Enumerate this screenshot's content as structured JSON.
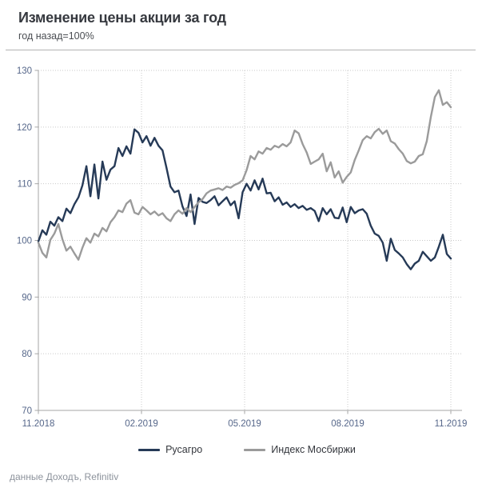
{
  "page": {
    "title": "Изменение цены акции за год",
    "subtitle": "год назад=100%",
    "footer": "данные Доходъ, Refinitiv"
  },
  "chart_data": {
    "type": "line",
    "title": "Изменение цены акции за год",
    "subtitle": "год назад=100%",
    "xlabel": "",
    "ylabel": "",
    "ylim": [
      70,
      130
    ],
    "yticks": [
      70,
      80,
      90,
      100,
      110,
      120,
      130
    ],
    "xtick_labels": [
      "11.2018",
      "02.2019",
      "05.2019",
      "08.2019",
      "11.2019"
    ],
    "grid": "dotted",
    "legend_position": "bottom",
    "axis_color": "#a6a6a6",
    "grid_color": "#c9c9c9",
    "tick_label_color": "#56678a",
    "series": [
      {
        "name": "Русагро",
        "color": "#263a57",
        "values": [
          99.8,
          101.8,
          101.0,
          103.3,
          102.6,
          104.1,
          103.4,
          105.6,
          104.8,
          106.4,
          107.6,
          109.7,
          113.1,
          107.8,
          113.4,
          107.4,
          113.9,
          110.7,
          112.5,
          113.1,
          116.3,
          114.9,
          116.6,
          115.3,
          119.6,
          119.0,
          117.3,
          118.4,
          116.7,
          118.1,
          116.7,
          115.9,
          112.8,
          109.5,
          108.5,
          108.8,
          106.0,
          104.3,
          108.1,
          102.9,
          107.5,
          106.8,
          106.6,
          107.1,
          107.8,
          106.2,
          106.9,
          107.6,
          106.2,
          106.9,
          103.9,
          108.5,
          110.0,
          108.8,
          110.6,
          109.0,
          110.9,
          108.3,
          108.4,
          106.9,
          107.6,
          106.3,
          106.7,
          105.9,
          106.4,
          105.7,
          106.1,
          105.4,
          105.7,
          105.2,
          103.4,
          105.7,
          104.6,
          105.5,
          104.0,
          103.9,
          105.8,
          103.2,
          105.9,
          104.8,
          105.3,
          105.5,
          104.7,
          102.6,
          101.2,
          100.8,
          99.6,
          96.4,
          100.3,
          98.3,
          97.7,
          97.0,
          95.8,
          94.9,
          95.9,
          96.4,
          98.0,
          97.2,
          96.4,
          97.0,
          98.9,
          101.0,
          97.6,
          96.8
        ]
      },
      {
        "name": "Индекс Мосбиржи",
        "color": "#9b9b9b",
        "values": [
          99.6,
          97.8,
          97.0,
          100.1,
          101.2,
          102.9,
          100.2,
          98.2,
          98.9,
          97.7,
          96.6,
          98.7,
          100.4,
          99.6,
          101.2,
          100.7,
          102.2,
          101.6,
          103.2,
          104.1,
          105.3,
          105.0,
          106.5,
          107.1,
          104.9,
          104.6,
          105.9,
          105.3,
          104.6,
          105.1,
          104.4,
          104.8,
          103.9,
          103.4,
          104.6,
          105.3,
          104.7,
          105.7,
          105.0,
          105.9,
          106.7,
          107.3,
          108.3,
          108.8,
          109.0,
          109.2,
          108.9,
          109.5,
          109.3,
          109.8,
          110.1,
          110.6,
          112.4,
          114.9,
          114.3,
          115.7,
          115.3,
          116.3,
          116.0,
          116.7,
          116.4,
          117.0,
          116.6,
          117.3,
          119.4,
          118.9,
          117.0,
          115.5,
          113.5,
          113.9,
          114.3,
          115.3,
          112.2,
          113.8,
          111.1,
          112.2,
          110.2,
          111.2,
          112.0,
          114.2,
          115.9,
          117.7,
          118.4,
          118.0,
          119.1,
          119.7,
          118.8,
          119.4,
          117.5,
          117.1,
          116.1,
          115.3,
          114.0,
          113.6,
          113.9,
          114.9,
          115.2,
          117.5,
          121.8,
          125.3,
          126.5,
          123.9,
          124.4,
          123.5
        ]
      }
    ]
  }
}
